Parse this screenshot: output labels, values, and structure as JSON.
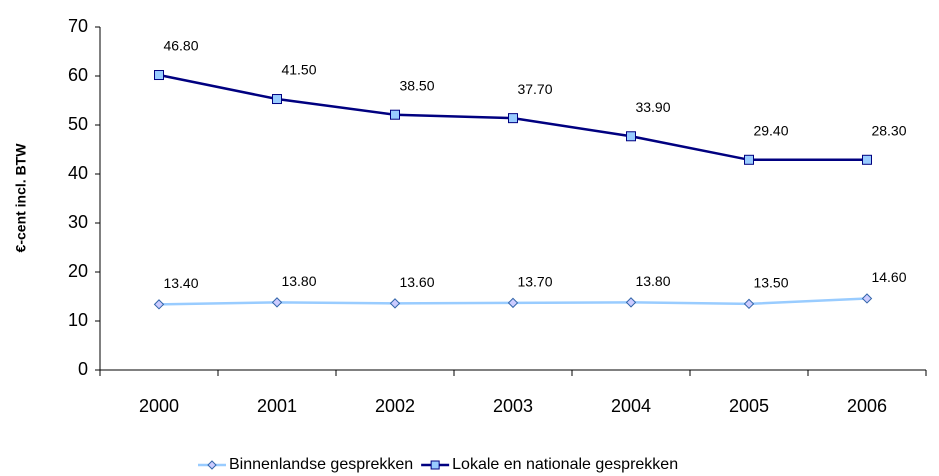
{
  "chart_data": {
    "type": "line",
    "stacked": true,
    "y_label": "€-cent incl. BTW",
    "categories": [
      "2000",
      "2001",
      "2002",
      "2003",
      "2004",
      "2005",
      "2006"
    ],
    "series": [
      {
        "name": "Binnenlandse gesprekken",
        "color": "#99ccff",
        "marker": "diamond",
        "values": [
          13.4,
          13.8,
          13.6,
          13.7,
          13.8,
          13.5,
          14.6
        ],
        "value_labels": [
          "13.40",
          "13.80",
          "13.60",
          "13.70",
          "13.80",
          "13.50",
          "14.60"
        ]
      },
      {
        "name": "Lokale en nationale gesprekken",
        "color": "#000080",
        "marker": "square",
        "values": [
          46.8,
          41.5,
          38.5,
          37.7,
          33.9,
          29.4,
          28.3
        ],
        "value_labels": [
          "46.80",
          "41.50",
          "38.50",
          "37.70",
          "33.90",
          "29.40",
          "28.30"
        ]
      }
    ],
    "ylim": [
      0,
      70
    ],
    "yticks": [
      0,
      10,
      20,
      30,
      40,
      50,
      60,
      70
    ],
    "grid": false,
    "legend": "bottom"
  }
}
